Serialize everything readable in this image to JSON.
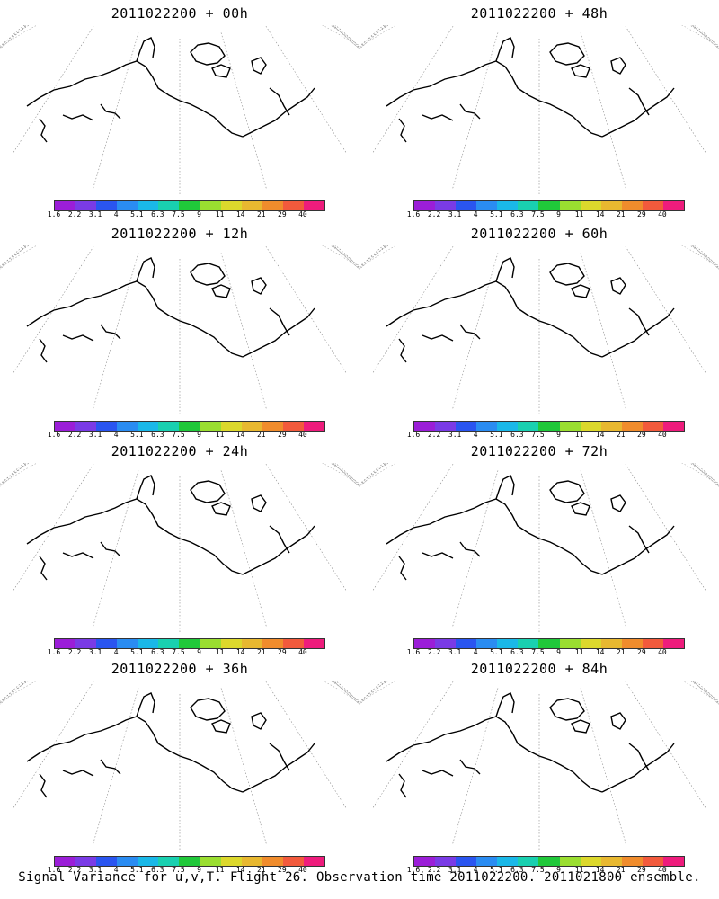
{
  "caption": "Signal Variance for u,v,T. Flight 26. Observation time 2011022200. 2011021800 ensemble.",
  "colorbar": {
    "labels": [
      "1.6",
      "2.2",
      "3.1",
      "4",
      "5.1",
      "6.3",
      "7.5",
      "9",
      "11",
      "14",
      "21",
      "29",
      "40"
    ],
    "colors": [
      "#9b1ed8",
      "#7a3be6",
      "#2a55f0",
      "#2a8cf2",
      "#1ab8e8",
      "#19d0b0",
      "#20c83a",
      "#9ade30",
      "#dcd82c",
      "#e8b830",
      "#f08c2c",
      "#f25a3c",
      "#ee1c7c"
    ]
  },
  "panels": [
    {
      "title": "2011022200 + 00h",
      "lead": 0
    },
    {
      "title": "2011022200 + 48h",
      "lead": 48
    },
    {
      "title": "2011022200 + 12h",
      "lead": 12
    },
    {
      "title": "2011022200 + 60h",
      "lead": 60
    },
    {
      "title": "2011022200 + 24h",
      "lead": 24
    },
    {
      "title": "2011022200 + 72h",
      "lead": 72
    },
    {
      "title": "2011022200 + 36h",
      "lead": 36
    },
    {
      "title": "2011022200 + 84h",
      "lead": 84
    }
  ]
}
